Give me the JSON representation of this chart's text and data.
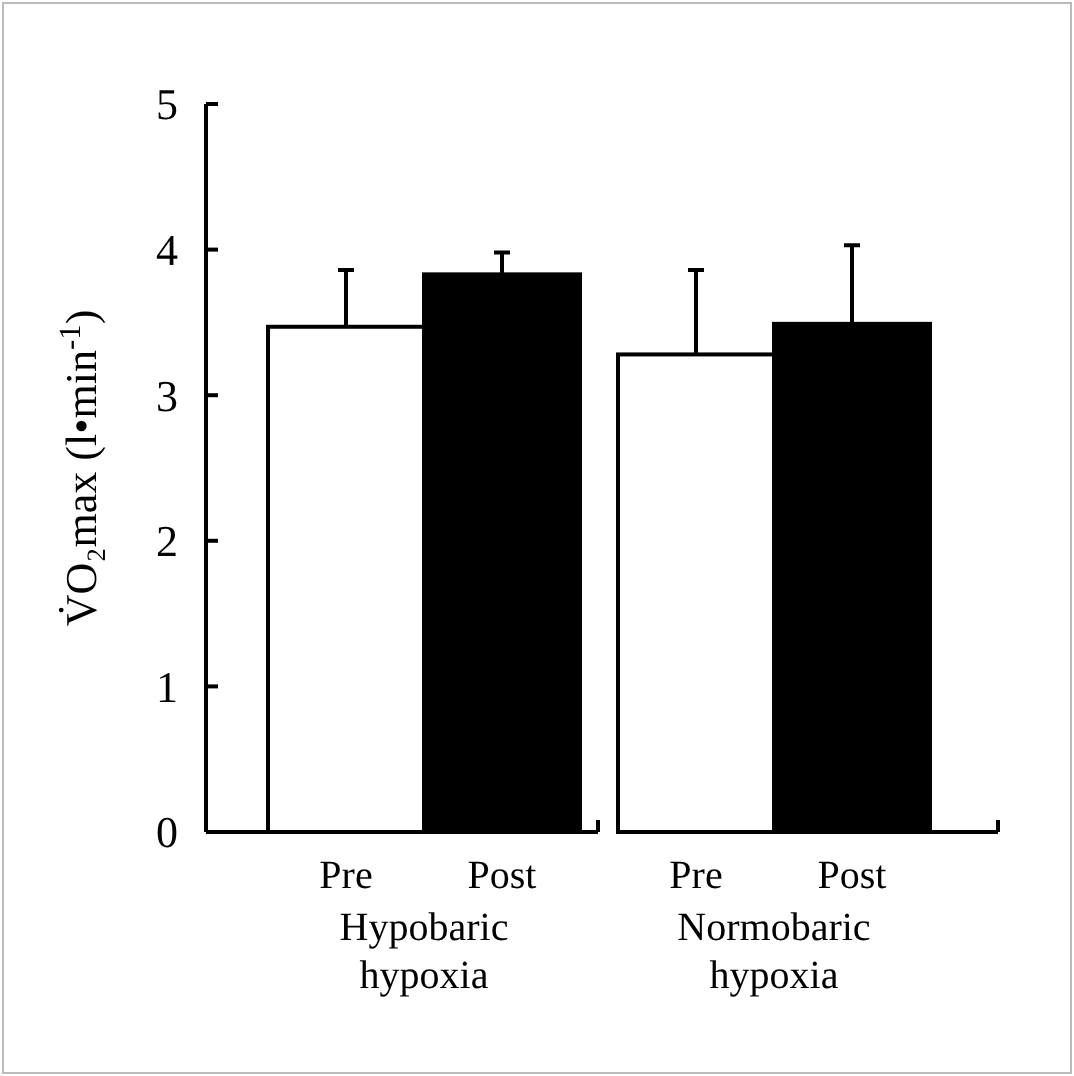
{
  "chart_data": {
    "type": "bar",
    "ylabel": "V̇O₂max (l•min$^{-1}$)",
    "categories": [
      "Pre",
      "Post",
      "Pre",
      "Post"
    ],
    "values": [
      3.47,
      3.83,
      3.28,
      3.49
    ],
    "colors": [
      "#ffffff",
      "#000000",
      "#ffffff",
      "#000000"
    ],
    "errors": [
      [
        3.47,
        3.86
      ],
      [
        3.83,
        3.98
      ],
      [
        3.28,
        3.86
      ],
      [
        3.49,
        4.03
      ]
    ],
    "ylim": [
      0,
      5
    ],
    "yticks": [
      0,
      1,
      2,
      3,
      4,
      5
    ],
    "annotations": [
      "Hypobaric hypoxia",
      "Normobaric hypoxia"
    ]
  }
}
